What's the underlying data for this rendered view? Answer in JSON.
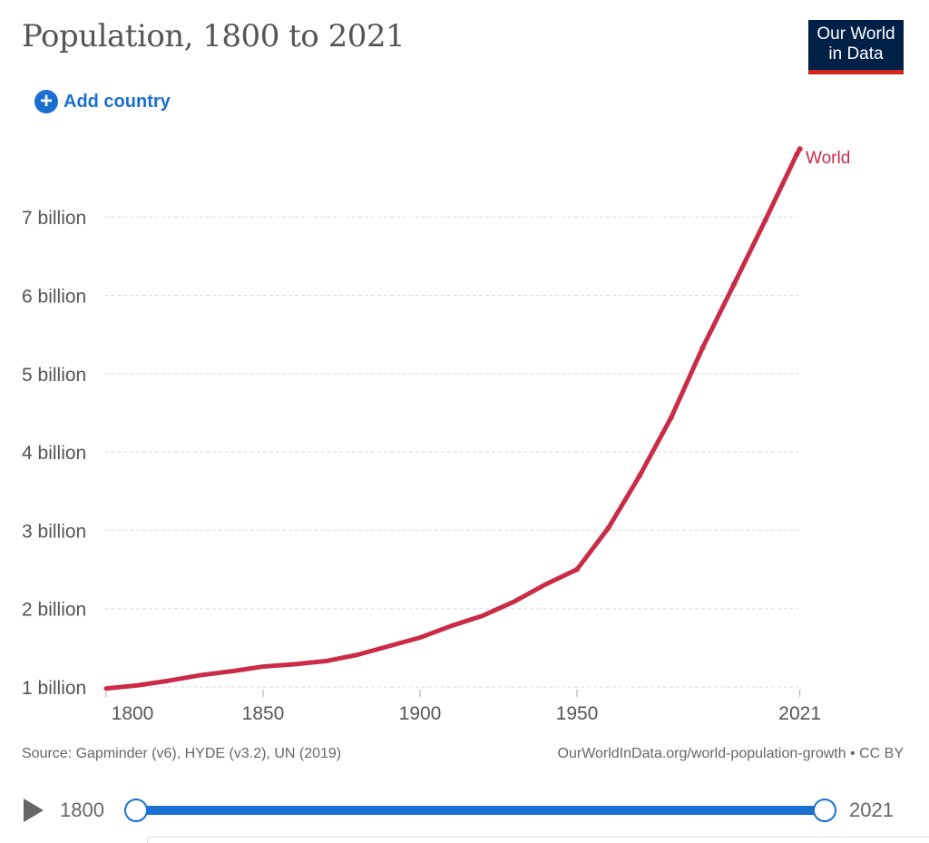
{
  "header": {
    "title": "Population, 1800 to 2021",
    "logo_line1": "Our World",
    "logo_line2": "in Data",
    "add_country": "Add country"
  },
  "footer": {
    "source": "Source: Gapminder (v6), HYDE (v3.2), UN (2019)",
    "link": "OurWorldInData.org/world-population-growth • CC BY"
  },
  "timeline": {
    "start": "1800",
    "end": "2021"
  },
  "colors": {
    "series": "#ca2b46",
    "accent": "#1a6fd1",
    "logo_bg": "#002147",
    "logo_bar": "#ce261e"
  },
  "chart_data": {
    "type": "line",
    "title": "Population, 1800 to 2021",
    "xlim": [
      1800,
      2021
    ],
    "ylim": [
      1,
      7.9
    ],
    "x_ticks": [
      "1800",
      "1850",
      "1900",
      "1950",
      "2021"
    ],
    "y_ticks": [
      "1 billion",
      "2 billion",
      "3 billion",
      "4 billion",
      "5 billion",
      "6 billion",
      "7 billion"
    ],
    "grid": "horizontal dashed",
    "series": [
      {
        "name": "World",
        "x": [
          1800,
          1810,
          1820,
          1830,
          1840,
          1850,
          1860,
          1870,
          1880,
          1890,
          1900,
          1910,
          1920,
          1930,
          1940,
          1950,
          1960,
          1970,
          1980,
          1990,
          2000,
          2010,
          2020,
          2021
        ],
        "values": [
          0.98,
          1.02,
          1.08,
          1.15,
          1.2,
          1.26,
          1.29,
          1.33,
          1.41,
          1.52,
          1.63,
          1.78,
          1.91,
          2.09,
          2.31,
          2.5,
          3.03,
          3.7,
          4.44,
          5.33,
          6.14,
          6.96,
          7.8,
          7.87
        ]
      }
    ]
  }
}
